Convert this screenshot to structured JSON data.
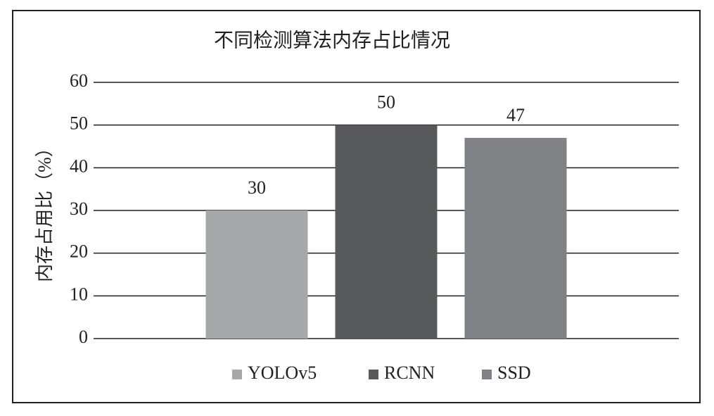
{
  "chart_data": {
    "type": "bar",
    "title": "不同检测算法内存占比情况",
    "y_label": "内存占用比（%）",
    "categories": [
      null
    ],
    "series": [
      {
        "name": "YOLOv5",
        "color": "#a6a7a9",
        "values": [
          30
        ]
      },
      {
        "name": "RCNN",
        "color": "#58595b",
        "values": [
          50
        ]
      },
      {
        "name": "SSD",
        "color": "#808184",
        "values": [
          47
        ]
      }
    ],
    "ylim": [
      0,
      60
    ],
    "yticks": [
      0,
      10,
      20,
      30,
      40,
      50,
      60
    ],
    "grid": true,
    "legend": "bottom"
  }
}
